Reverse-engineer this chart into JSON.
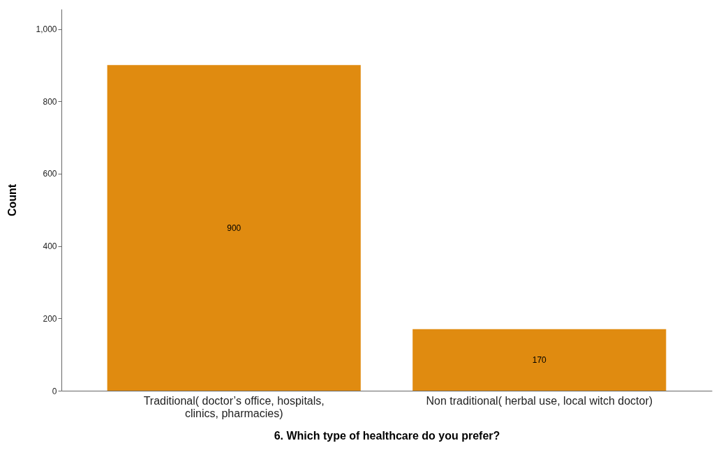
{
  "chart_data": {
    "type": "bar",
    "xlabel": "6. Which type of healthcare do you prefer?",
    "ylabel": "Count",
    "categories": [
      "Traditional( doctor’s office, hospitals, clinics, pharmacies)",
      "Non traditional( herbal use, local witch doctor)"
    ],
    "values": [
      900,
      170
    ],
    "color": "#e08b10",
    "data_labels": true,
    "grid": false,
    "ylim": [
      0,
      1055
    ],
    "yticks": [
      0,
      200,
      400,
      600,
      800,
      {
        "value": 1000,
        "label": "1,000"
      }
    ]
  }
}
